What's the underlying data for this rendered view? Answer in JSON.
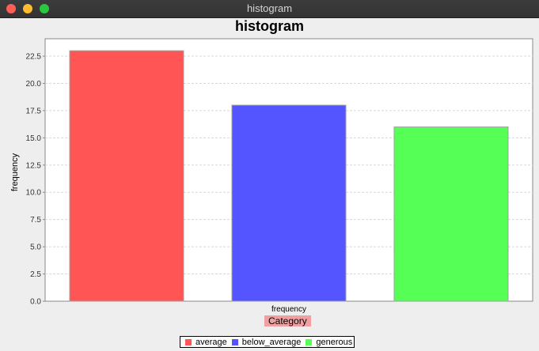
{
  "window": {
    "title": "histogram"
  },
  "chart_data": {
    "type": "bar",
    "title": "histogram",
    "ylabel": "frequency",
    "xlabel": "Category",
    "x_category_label": "frequency",
    "categories": [
      "frequency"
    ],
    "series": [
      {
        "name": "average",
        "values": [
          23
        ],
        "color": "#ff5555"
      },
      {
        "name": "below_average",
        "values": [
          18
        ],
        "color": "#5555ff"
      },
      {
        "name": "generous",
        "values": [
          16
        ],
        "color": "#55ff55"
      }
    ],
    "ylim": [
      0,
      24.1
    ],
    "yticks": [
      "0.0",
      "2.5",
      "5.0",
      "7.5",
      "10.0",
      "12.5",
      "15.0",
      "17.5",
      "20.0",
      "22.5"
    ],
    "grid": true,
    "legend_position": "bottom",
    "xlabel_background": "#f0a0a0"
  }
}
